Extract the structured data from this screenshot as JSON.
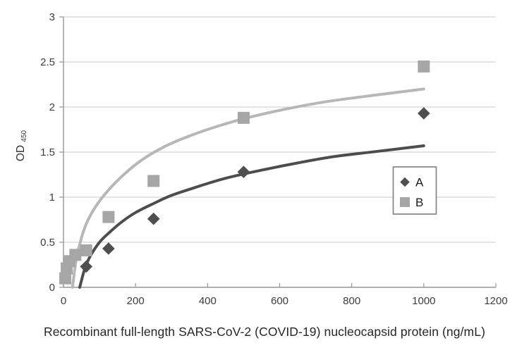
{
  "chart_data": {
    "type": "scatter",
    "title": "",
    "xlabel": "Recombinant full-length SARS-CoV-2 (COVID-19) nucleocapsid protein (ng/mL)",
    "ylabel": "OD",
    "ylabel_subscript": "450",
    "xlim": [
      0,
      1200
    ],
    "ylim": [
      0,
      3
    ],
    "xticks": [
      0,
      200,
      400,
      600,
      800,
      1000,
      1200
    ],
    "yticks": [
      0,
      0.5,
      1,
      1.5,
      2,
      2.5,
      3
    ],
    "grid": "horizontal",
    "legend_position": "right-middle",
    "series": [
      {
        "name": "B",
        "marker": "square",
        "marker_color": "#a6a6a6",
        "points": [
          [
            5,
            0.1
          ],
          [
            9,
            0.21
          ],
          [
            17,
            0.29
          ],
          [
            33,
            0.36
          ],
          [
            63,
            0.41
          ],
          [
            125,
            0.78
          ],
          [
            250,
            1.18
          ],
          [
            500,
            1.88
          ],
          [
            1000,
            2.45
          ]
        ],
        "trendline": {
          "color": "#b7b7b7",
          "width": 4,
          "samples": [
            [
              25,
              0
            ],
            [
              35,
              0.3
            ],
            [
              50,
              0.55
            ],
            [
              65,
              0.72
            ],
            [
              90,
              0.9
            ],
            [
              125,
              1.08
            ],
            [
              170,
              1.26
            ],
            [
              220,
              1.42
            ],
            [
              280,
              1.56
            ],
            [
              350,
              1.68
            ],
            [
              430,
              1.79
            ],
            [
              520,
              1.89
            ],
            [
              620,
              1.98
            ],
            [
              730,
              2.06
            ],
            [
              860,
              2.13
            ],
            [
              1000,
              2.2
            ]
          ]
        }
      },
      {
        "name": "A",
        "marker": "diamond",
        "marker_color": "#4f4f4f",
        "points": [
          [
            63,
            0.23
          ],
          [
            125,
            0.43
          ],
          [
            250,
            0.76
          ],
          [
            500,
            1.28
          ],
          [
            1000,
            1.93
          ]
        ],
        "trendline": {
          "color": "#4d4d4d",
          "width": 4,
          "samples": [
            [
              45,
              0
            ],
            [
              60,
              0.22
            ],
            [
              75,
              0.35
            ],
            [
              100,
              0.5
            ],
            [
              125,
              0.6
            ],
            [
              160,
              0.72
            ],
            [
              200,
              0.83
            ],
            [
              250,
              0.93
            ],
            [
              300,
              1.02
            ],
            [
              375,
              1.12
            ],
            [
              450,
              1.21
            ],
            [
              550,
              1.3
            ],
            [
              650,
              1.38
            ],
            [
              750,
              1.45
            ],
            [
              875,
              1.51
            ],
            [
              1000,
              1.57
            ]
          ]
        }
      }
    ],
    "legend_order": [
      "A",
      "B"
    ]
  },
  "colors": {
    "grid": "#c9c9c9",
    "axis": "#969696",
    "tick_text": "#3c3c3c",
    "axis_title_text": "#333333",
    "legend_border": "#7f7f7f",
    "legend_text": "#1a1a1a",
    "background": "#ffffff"
  }
}
